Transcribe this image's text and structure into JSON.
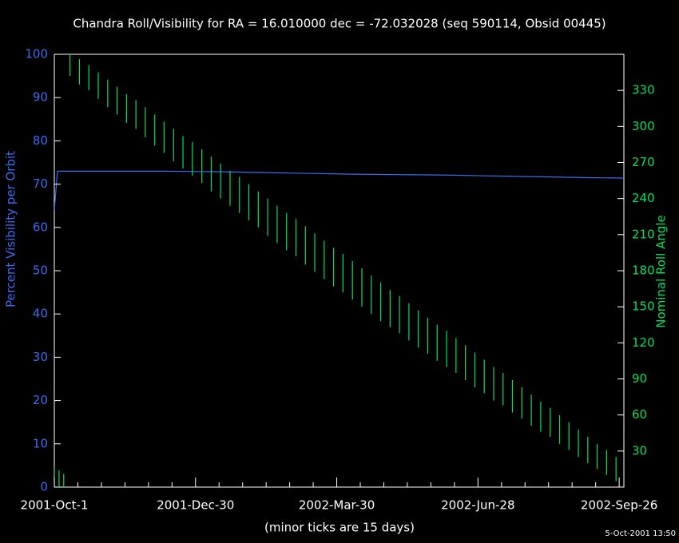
{
  "chart_data": {
    "type": "line",
    "title": "Chandra Roll/Visibility for RA = 16.010000 dec = -72.032028 (seq 590114, Obsid 00445)",
    "ylabel": "Percent Visibility per Orbit",
    "y2label": "Nominal Roll Angle",
    "note": "(minor ticks are 15 days)",
    "timestamp": "5-Oct-2001 13:50",
    "xlim": [
      0,
      363
    ],
    "xticks": [
      {
        "value": 0,
        "label": "2001-Oct-1"
      },
      {
        "value": 90,
        "label": "2001-Dec-30"
      },
      {
        "value": 180,
        "label": "2002-Mar-30"
      },
      {
        "value": 270,
        "label": "2002-Jun-28"
      },
      {
        "value": 360,
        "label": "2002-Sep-26"
      }
    ],
    "xminorticks": [
      15,
      30,
      45,
      60,
      75,
      105,
      120,
      135,
      150,
      165,
      195,
      210,
      225,
      240,
      255,
      285,
      300,
      315,
      330,
      345
    ],
    "ylim": [
      0,
      100
    ],
    "yticks": [
      0,
      10,
      20,
      30,
      40,
      50,
      60,
      70,
      80,
      90,
      100
    ],
    "y2lim": [
      0,
      360
    ],
    "y2ticks": [
      30,
      60,
      90,
      120,
      150,
      180,
      210,
      240,
      270,
      300,
      330
    ],
    "left_color": "#3c6cf0",
    "right_color": "#00e060",
    "series": [
      {
        "color": "#3c6cf0",
        "x": [
          0,
          2,
          10,
          40,
          70,
          100,
          130,
          160,
          190,
          220,
          250,
          280,
          310,
          340,
          363
        ],
        "values": [
          64,
          73,
          73,
          73,
          73,
          72.9,
          72.7,
          72.5,
          72.3,
          72.2,
          72.1,
          71.9,
          71.7,
          71.5,
          71.4
        ]
      },
      {
        "color": "#00e060",
        "axis": "y2",
        "x": [
          0,
          3,
          6,
          10,
          16,
          22,
          28,
          34,
          40,
          46,
          52,
          58,
          64,
          70,
          76,
          82,
          88,
          94,
          100,
          106,
          112,
          118,
          124,
          130,
          136,
          142,
          148,
          154,
          160,
          166,
          172,
          178,
          184,
          190,
          196,
          202,
          208,
          214,
          220,
          226,
          232,
          238,
          244,
          250,
          256,
          262,
          268,
          274,
          280,
          286,
          292,
          298,
          304,
          310,
          316,
          322,
          328,
          334,
          340,
          346,
          352,
          358
        ],
        "low": [
          0,
          0,
          0,
          342,
          335,
          330,
          323,
          316,
          310,
          303,
          298,
          291,
          284,
          278,
          271,
          265,
          259,
          253,
          246,
          240,
          234,
          228,
          222,
          216,
          209,
          203,
          197,
          192,
          185,
          179,
          173,
          167,
          162,
          156,
          150,
          144,
          138,
          133,
          128,
          122,
          116,
          111,
          105,
          100,
          95,
          89,
          83,
          78,
          72,
          68,
          62,
          57,
          51,
          46,
          42,
          36,
          31,
          25,
          20,
          15,
          10,
          5
        ],
        "high": [
          17,
          14,
          11,
          362,
          356,
          351,
          345,
          339,
          333,
          327,
          322,
          316,
          310,
          304,
          298,
          292,
          287,
          281,
          275,
          269,
          263,
          258,
          252,
          246,
          240,
          234,
          228,
          223,
          217,
          211,
          205,
          199,
          194,
          188,
          182,
          176,
          170,
          164,
          159,
          153,
          147,
          141,
          135,
          130,
          124,
          118,
          112,
          106,
          100,
          95,
          89,
          83,
          77,
          71,
          66,
          60,
          54,
          48,
          42,
          36,
          31,
          25
        ]
      }
    ]
  }
}
